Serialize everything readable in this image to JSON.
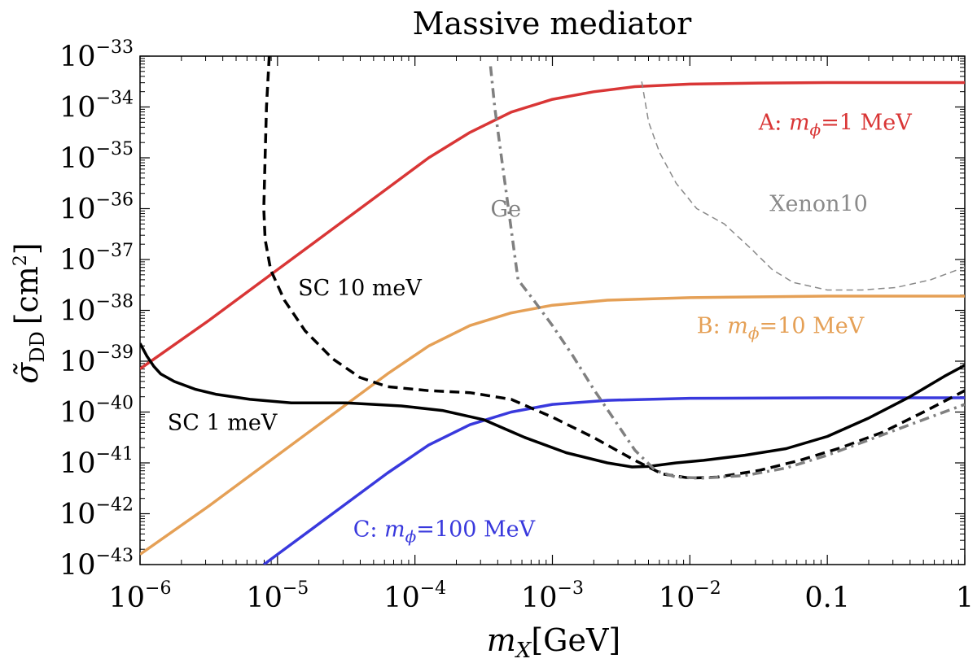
{
  "chart_data": {
    "type": "line",
    "title": "Massive mediator",
    "xlabel": {
      "symbol": "m",
      "subscript": "X",
      "unit": "[GeV]"
    },
    "ylabel": {
      "symbol": "σ̃",
      "subscript": "DD",
      "unit": "[cm",
      "unit_sup": "2",
      "unit_close": "]"
    },
    "x_scale": "log",
    "y_scale": "log",
    "xlim_log10": [
      -6,
      0
    ],
    "ylim_log10": [
      -43,
      -33
    ],
    "x_ticks": [
      {
        "log10": -6,
        "base": "10",
        "exp": "−6"
      },
      {
        "log10": -5,
        "base": "10",
        "exp": "−5"
      },
      {
        "log10": -4,
        "base": "10",
        "exp": "−4"
      },
      {
        "log10": -3,
        "base": "10",
        "exp": "−3"
      },
      {
        "log10": -2,
        "base": "10",
        "exp": "−2"
      },
      {
        "log10": -1,
        "base": "0.1",
        "exp": ""
      },
      {
        "log10": 0,
        "base": "1",
        "exp": ""
      }
    ],
    "y_ticks": [
      {
        "log10": -33,
        "base": "10",
        "exp": "−33"
      },
      {
        "log10": -34,
        "base": "10",
        "exp": "−34"
      },
      {
        "log10": -35,
        "base": "10",
        "exp": "−35"
      },
      {
        "log10": -36,
        "base": "10",
        "exp": "−36"
      },
      {
        "log10": -37,
        "base": "10",
        "exp": "−37"
      },
      {
        "log10": -38,
        "base": "10",
        "exp": "−38"
      },
      {
        "log10": -39,
        "base": "10",
        "exp": "−39"
      },
      {
        "log10": -40,
        "base": "10",
        "exp": "−40"
      },
      {
        "log10": -41,
        "base": "10",
        "exp": "−41"
      },
      {
        "log10": -42,
        "base": "10",
        "exp": "−42"
      },
      {
        "log10": -43,
        "base": "10",
        "exp": "−43"
      }
    ],
    "series": [
      {
        "name": "A-red",
        "color": "#d93636",
        "style": "solid",
        "width": 3.5,
        "label": {
          "prefix": "A: ",
          "sym": "m",
          "sub": "ϕ",
          "suffix": "=1 MeV",
          "x": -1.5,
          "y": -34.45
        },
        "points": [
          [
            -6,
            -39.15
          ],
          [
            -5.5,
            -38.2
          ],
          [
            -5,
            -37.2
          ],
          [
            -4.6,
            -36.4
          ],
          [
            -4.2,
            -35.6
          ],
          [
            -3.9,
            -35.0
          ],
          [
            -3.6,
            -34.5
          ],
          [
            -3.3,
            -34.1
          ],
          [
            -3.0,
            -33.85
          ],
          [
            -2.7,
            -33.7
          ],
          [
            -2.4,
            -33.6
          ],
          [
            -2.0,
            -33.55
          ],
          [
            -1.5,
            -33.53
          ],
          [
            -1.0,
            -33.52
          ],
          [
            0,
            -33.52
          ]
        ]
      },
      {
        "name": "B-orange",
        "color": "#e5a056",
        "style": "solid",
        "width": 3.5,
        "label": {
          "prefix": "B: ",
          "sym": "m",
          "sub": "ϕ",
          "suffix": "=10 MeV",
          "x": -1.95,
          "y": -38.45
        },
        "points": [
          [
            -6,
            -42.8
          ],
          [
            -5.5,
            -41.85
          ],
          [
            -5,
            -40.85
          ],
          [
            -4.6,
            -40.05
          ],
          [
            -4.2,
            -39.25
          ],
          [
            -3.9,
            -38.7
          ],
          [
            -3.6,
            -38.3
          ],
          [
            -3.3,
            -38.05
          ],
          [
            -3.0,
            -37.9
          ],
          [
            -2.6,
            -37.8
          ],
          [
            -2.0,
            -37.75
          ],
          [
            -1.0,
            -37.72
          ],
          [
            0,
            -37.72
          ]
        ]
      },
      {
        "name": "C-blue",
        "color": "#3939dd",
        "style": "solid",
        "width": 3.5,
        "label": {
          "prefix": "C: ",
          "sym": "m",
          "sub": "ϕ",
          "suffix": "=100 MeV",
          "x": -4.45,
          "y": -42.45
        },
        "points": [
          [
            -5.1,
            -43.0
          ],
          [
            -5,
            -42.8
          ],
          [
            -4.6,
            -42.0
          ],
          [
            -4.2,
            -41.2
          ],
          [
            -3.9,
            -40.65
          ],
          [
            -3.6,
            -40.25
          ],
          [
            -3.3,
            -40.0
          ],
          [
            -3.0,
            -39.85
          ],
          [
            -2.6,
            -39.77
          ],
          [
            -2.0,
            -39.73
          ],
          [
            -1.0,
            -39.72
          ],
          [
            0,
            -39.72
          ]
        ]
      },
      {
        "name": "SC-1meV",
        "color": "#000000",
        "style": "solid",
        "width": 3.5,
        "label": {
          "prefix": "SC 1 meV",
          "sym": "",
          "sub": "",
          "suffix": "",
          "x": -5.8,
          "y": -40.35
        },
        "points": [
          [
            -6,
            -38.65
          ],
          [
            -5.95,
            -38.9
          ],
          [
            -5.9,
            -39.1
          ],
          [
            -5.85,
            -39.25
          ],
          [
            -5.75,
            -39.4
          ],
          [
            -5.6,
            -39.55
          ],
          [
            -5.45,
            -39.65
          ],
          [
            -5.2,
            -39.75
          ],
          [
            -4.9,
            -39.82
          ],
          [
            -4.5,
            -39.82
          ],
          [
            -4.1,
            -39.88
          ],
          [
            -3.8,
            -39.97
          ],
          [
            -3.5,
            -40.15
          ],
          [
            -3.2,
            -40.5
          ],
          [
            -2.9,
            -40.8
          ],
          [
            -2.6,
            -41.0
          ],
          [
            -2.42,
            -41.08
          ],
          [
            -2.3,
            -41.07
          ],
          [
            -2.1,
            -41.0
          ],
          [
            -1.9,
            -40.95
          ],
          [
            -1.6,
            -40.85
          ],
          [
            -1.3,
            -40.72
          ],
          [
            -1.0,
            -40.48
          ],
          [
            -0.7,
            -40.12
          ],
          [
            -0.4,
            -39.7
          ],
          [
            -0.15,
            -39.3
          ],
          [
            0,
            -39.08
          ]
        ]
      },
      {
        "name": "SC-10meV",
        "color": "#000000",
        "style": "dashed",
        "width": 3.5,
        "label": {
          "prefix": "SC 10 meV",
          "sym": "",
          "sub": "",
          "suffix": "",
          "x": -4.85,
          "y": -37.7
        },
        "points": [
          [
            -5.06,
            -33.0
          ],
          [
            -5.08,
            -34.0
          ],
          [
            -5.09,
            -35.0
          ],
          [
            -5.1,
            -36.0
          ],
          [
            -5.09,
            -36.6
          ],
          [
            -5.05,
            -37.2
          ],
          [
            -4.95,
            -37.8
          ],
          [
            -4.8,
            -38.4
          ],
          [
            -4.6,
            -38.95
          ],
          [
            -4.4,
            -39.32
          ],
          [
            -4.2,
            -39.5
          ],
          [
            -3.9,
            -39.58
          ],
          [
            -3.6,
            -39.62
          ],
          [
            -3.3,
            -39.75
          ],
          [
            -3.0,
            -40.1
          ],
          [
            -2.7,
            -40.5
          ],
          [
            -2.4,
            -40.95
          ],
          [
            -2.2,
            -41.22
          ],
          [
            -2.0,
            -41.3
          ],
          [
            -1.8,
            -41.28
          ],
          [
            -1.5,
            -41.15
          ],
          [
            -1.2,
            -40.95
          ],
          [
            -0.9,
            -40.7
          ],
          [
            -0.6,
            -40.4
          ],
          [
            -0.3,
            -40.0
          ],
          [
            0,
            -39.58
          ]
        ]
      },
      {
        "name": "Ge",
        "color": "#808080",
        "style": "dashdot",
        "width": 3.5,
        "label": {
          "prefix": "Ge",
          "sym": "",
          "sub": "",
          "suffix": "",
          "x": -3.45,
          "y": -36.15
        },
        "points": [
          [
            -3.45,
            -33.2
          ],
          [
            -3.42,
            -34.0
          ],
          [
            -3.37,
            -35.0
          ],
          [
            -3.32,
            -36.0
          ],
          [
            -3.28,
            -36.8
          ],
          [
            -3.25,
            -37.4
          ],
          [
            -3.15,
            -37.75
          ],
          [
            -3.0,
            -38.3
          ],
          [
            -2.85,
            -38.9
          ],
          [
            -2.7,
            -39.55
          ],
          [
            -2.55,
            -40.15
          ],
          [
            -2.4,
            -40.75
          ],
          [
            -2.25,
            -41.15
          ],
          [
            -2.1,
            -41.28
          ],
          [
            -1.9,
            -41.3
          ],
          [
            -1.6,
            -41.25
          ],
          [
            -1.3,
            -41.1
          ],
          [
            -1.0,
            -40.85
          ],
          [
            -0.7,
            -40.55
          ],
          [
            -0.4,
            -40.25
          ],
          [
            0,
            -39.85
          ]
        ]
      },
      {
        "name": "Xenon10",
        "color": "#8a8a8a",
        "style": "thin-dashed",
        "width": 1.5,
        "label": {
          "prefix": "Xenon10",
          "sym": "",
          "sub": "",
          "suffix": "",
          "x": -1.42,
          "y": -36.05
        },
        "points": [
          [
            -2.35,
            -33.5
          ],
          [
            -2.3,
            -34.3
          ],
          [
            -2.22,
            -34.9
          ],
          [
            -2.1,
            -35.5
          ],
          [
            -1.95,
            -36.0
          ],
          [
            -1.75,
            -36.3
          ],
          [
            -1.55,
            -36.8
          ],
          [
            -1.4,
            -37.2
          ],
          [
            -1.25,
            -37.45
          ],
          [
            -1.0,
            -37.6
          ],
          [
            -0.75,
            -37.6
          ],
          [
            -0.5,
            -37.55
          ],
          [
            -0.25,
            -37.4
          ],
          [
            0,
            -37.15
          ]
        ]
      }
    ]
  }
}
